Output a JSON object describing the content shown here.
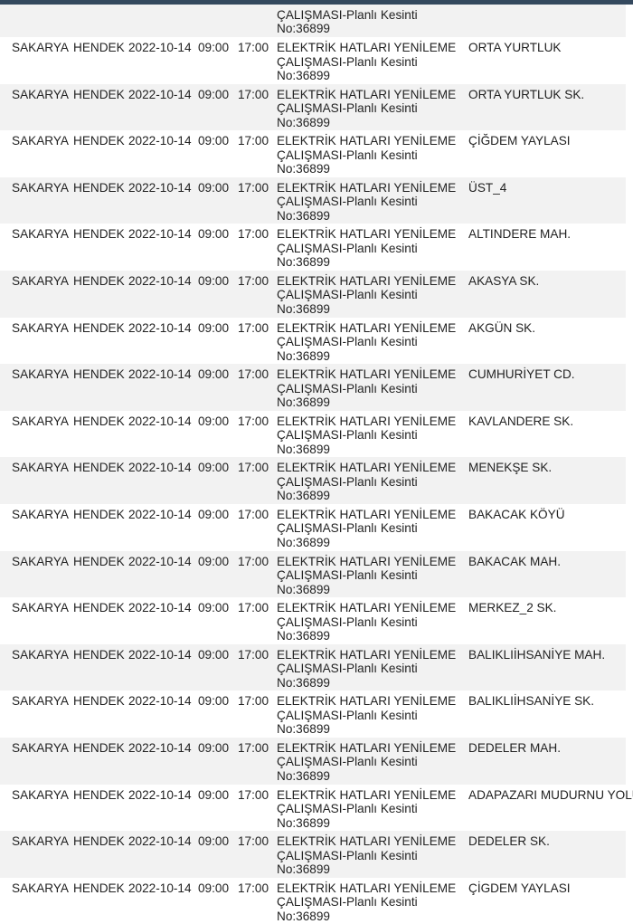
{
  "header_color": "#34495e",
  "partial_row": {
    "description_lines": [
      "ÇALIŞMASI-Planlı Kesinti",
      "No:36899"
    ]
  },
  "rows": [
    {
      "il": "SAKARYA",
      "ilce": "HENDEK",
      "tarih": "2022-10-14",
      "baslangic": "09:00",
      "bitis": "17:00",
      "aciklama": [
        "ELEKTRİK HATLARI YENİLEME",
        "ÇALIŞMASI-Planlı Kesinti",
        "No:36899"
      ],
      "yer": "ORTA YURTLUK"
    },
    {
      "il": "SAKARYA",
      "ilce": "HENDEK",
      "tarih": "2022-10-14",
      "baslangic": "09:00",
      "bitis": "17:00",
      "aciklama": [
        "ELEKTRİK HATLARI YENİLEME",
        "ÇALIŞMASI-Planlı Kesinti",
        "No:36899"
      ],
      "yer": "ORTA YURTLUK SK."
    },
    {
      "il": "SAKARYA",
      "ilce": "HENDEK",
      "tarih": "2022-10-14",
      "baslangic": "09:00",
      "bitis": "17:00",
      "aciklama": [
        "ELEKTRİK HATLARI YENİLEME",
        "ÇALIŞMASI-Planlı Kesinti",
        "No:36899"
      ],
      "yer": "ÇİĞDEM  YAYLASI"
    },
    {
      "il": "SAKARYA",
      "ilce": "HENDEK",
      "tarih": "2022-10-14",
      "baslangic": "09:00",
      "bitis": "17:00",
      "aciklama": [
        "ELEKTRİK HATLARI YENİLEME",
        "ÇALIŞMASI-Planlı Kesinti",
        "No:36899"
      ],
      "yer": "ÜST_4"
    },
    {
      "il": "SAKARYA",
      "ilce": "HENDEK",
      "tarih": "2022-10-14",
      "baslangic": "09:00",
      "bitis": "17:00",
      "aciklama": [
        "ELEKTRİK HATLARI YENİLEME",
        "ÇALIŞMASI-Planlı Kesinti",
        "No:36899"
      ],
      "yer": "ALTINDERE MAH."
    },
    {
      "il": "SAKARYA",
      "ilce": "HENDEK",
      "tarih": "2022-10-14",
      "baslangic": "09:00",
      "bitis": "17:00",
      "aciklama": [
        "ELEKTRİK HATLARI YENİLEME",
        "ÇALIŞMASI-Planlı Kesinti",
        "No:36899"
      ],
      "yer": "AKASYA SK."
    },
    {
      "il": "SAKARYA",
      "ilce": "HENDEK",
      "tarih": "2022-10-14",
      "baslangic": "09:00",
      "bitis": "17:00",
      "aciklama": [
        "ELEKTRİK HATLARI YENİLEME",
        "ÇALIŞMASI-Planlı Kesinti",
        "No:36899"
      ],
      "yer": "AKGÜN SK."
    },
    {
      "il": "SAKARYA",
      "ilce": "HENDEK",
      "tarih": "2022-10-14",
      "baslangic": "09:00",
      "bitis": "17:00",
      "aciklama": [
        "ELEKTRİK HATLARI YENİLEME",
        "ÇALIŞMASI-Planlı Kesinti",
        "No:36899"
      ],
      "yer": "CUMHURİYET CD."
    },
    {
      "il": "SAKARYA",
      "ilce": "HENDEK",
      "tarih": "2022-10-14",
      "baslangic": "09:00",
      "bitis": "17:00",
      "aciklama": [
        "ELEKTRİK HATLARI YENİLEME",
        "ÇALIŞMASI-Planlı Kesinti",
        "No:36899"
      ],
      "yer": "KAVLANDERE SK."
    },
    {
      "il": "SAKARYA",
      "ilce": "HENDEK",
      "tarih": "2022-10-14",
      "baslangic": "09:00",
      "bitis": "17:00",
      "aciklama": [
        "ELEKTRİK HATLARI YENİLEME",
        "ÇALIŞMASI-Planlı Kesinti",
        "No:36899"
      ],
      "yer": "MENEKŞE SK."
    },
    {
      "il": "SAKARYA",
      "ilce": "HENDEK",
      "tarih": "2022-10-14",
      "baslangic": "09:00",
      "bitis": "17:00",
      "aciklama": [
        "ELEKTRİK HATLARI YENİLEME",
        "ÇALIŞMASI-Planlı Kesinti",
        "No:36899"
      ],
      "yer": "BAKACAK KÖYÜ"
    },
    {
      "il": "SAKARYA",
      "ilce": "HENDEK",
      "tarih": "2022-10-14",
      "baslangic": "09:00",
      "bitis": "17:00",
      "aciklama": [
        "ELEKTRİK HATLARI YENİLEME",
        "ÇALIŞMASI-Planlı Kesinti",
        "No:36899"
      ],
      "yer": "BAKACAK MAH."
    },
    {
      "il": "SAKARYA",
      "ilce": "HENDEK",
      "tarih": "2022-10-14",
      "baslangic": "09:00",
      "bitis": "17:00",
      "aciklama": [
        "ELEKTRİK HATLARI YENİLEME",
        "ÇALIŞMASI-Planlı Kesinti",
        "No:36899"
      ],
      "yer": "MERKEZ_2 SK."
    },
    {
      "il": "SAKARYA",
      "ilce": "HENDEK",
      "tarih": "2022-10-14",
      "baslangic": "09:00",
      "bitis": "17:00",
      "aciklama": [
        "ELEKTRİK HATLARI YENİLEME",
        "ÇALIŞMASI-Planlı Kesinti",
        "No:36899"
      ],
      "yer": "BALIKLIİHSANİYE MAH."
    },
    {
      "il": "SAKARYA",
      "ilce": "HENDEK",
      "tarih": "2022-10-14",
      "baslangic": "09:00",
      "bitis": "17:00",
      "aciklama": [
        "ELEKTRİK HATLARI YENİLEME",
        "ÇALIŞMASI-Planlı Kesinti",
        "No:36899"
      ],
      "yer": "BALIKLIİHSANİYE SK."
    },
    {
      "il": "SAKARYA",
      "ilce": "HENDEK",
      "tarih": "2022-10-14",
      "baslangic": "09:00",
      "bitis": "17:00",
      "aciklama": [
        "ELEKTRİK HATLARI YENİLEME",
        "ÇALIŞMASI-Planlı Kesinti",
        "No:36899"
      ],
      "yer": "DEDELER MAH."
    },
    {
      "il": "SAKARYA",
      "ilce": "HENDEK",
      "tarih": "2022-10-14",
      "baslangic": "09:00",
      "bitis": "17:00",
      "aciklama": [
        "ELEKTRİK HATLARI YENİLEME",
        "ÇALIŞMASI-Planlı Kesinti",
        "No:36899"
      ],
      "yer": "ADAPAZARI MUDURNU YOLU"
    },
    {
      "il": "SAKARYA",
      "ilce": "HENDEK",
      "tarih": "2022-10-14",
      "baslangic": "09:00",
      "bitis": "17:00",
      "aciklama": [
        "ELEKTRİK HATLARI YENİLEME",
        "ÇALIŞMASI-Planlı Kesinti",
        "No:36899"
      ],
      "yer": "DEDELER SK."
    },
    {
      "il": "SAKARYA",
      "ilce": "HENDEK",
      "tarih": "2022-10-14",
      "baslangic": "09:00",
      "bitis": "17:00",
      "aciklama": [
        "ELEKTRİK HATLARI YENİLEME",
        "ÇALIŞMASI-Planlı Kesinti",
        "No:36899"
      ],
      "yer": "ÇİGDEM YAYLASI"
    }
  ]
}
